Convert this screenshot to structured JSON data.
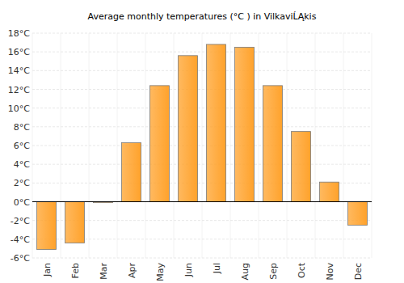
{
  "chart_data": {
    "type": "bar",
    "title": "Average monthly temperatures (°C ) in VilkaviĹĄkis",
    "categories": [
      "Jan",
      "Feb",
      "Mar",
      "Apr",
      "May",
      "Jun",
      "Jul",
      "Aug",
      "Sep",
      "Oct",
      "Nov",
      "Dec"
    ],
    "values": [
      -5.1,
      -4.4,
      -0.1,
      6.3,
      12.4,
      15.6,
      16.8,
      16.5,
      12.4,
      7.5,
      2.1,
      -2.5
    ],
    "color": "#ffa22b",
    "ylim": [
      -6,
      18
    ],
    "yticks": [
      {
        "value": -6,
        "label": "-6°C"
      },
      {
        "value": -4,
        "label": "-4°C"
      },
      {
        "value": -2,
        "label": "-2°C"
      },
      {
        "value": 0,
        "label": "0°C"
      },
      {
        "value": 2,
        "label": "2°C"
      },
      {
        "value": 4,
        "label": "4°C"
      },
      {
        "value": 6,
        "label": "6°C"
      },
      {
        "value": 8,
        "label": "8°C"
      },
      {
        "value": 10,
        "label": "10°C"
      },
      {
        "value": 12,
        "label": "12°C"
      },
      {
        "value": 14,
        "label": "14°C"
      },
      {
        "value": 16,
        "label": "16°C"
      },
      {
        "value": 18,
        "label": "18°C"
      }
    ],
    "grid": true
  }
}
